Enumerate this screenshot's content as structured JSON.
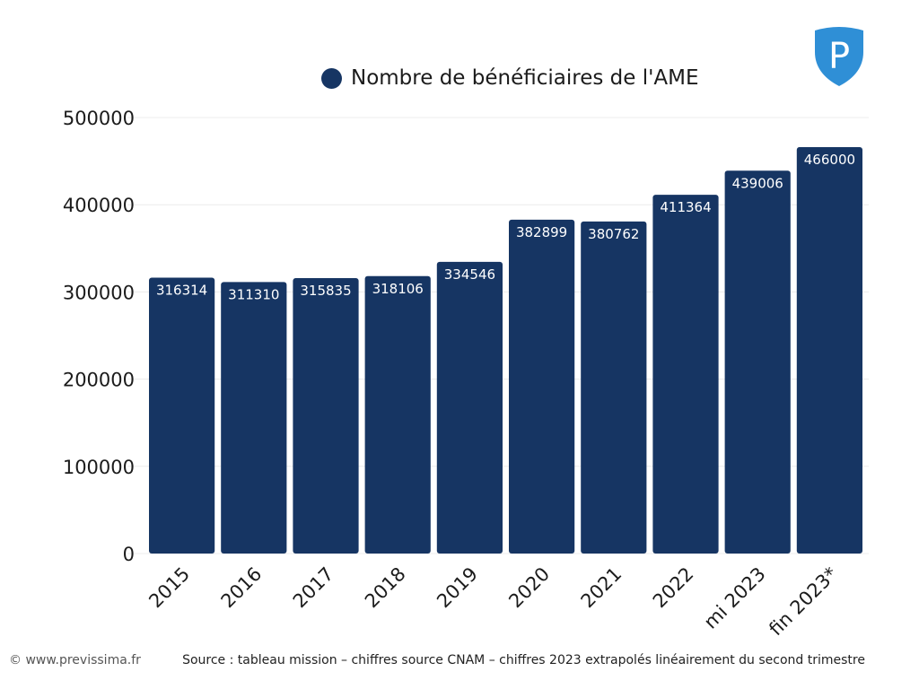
{
  "chart_data": {
    "type": "bar",
    "categories": [
      "2015",
      "2016",
      "2017",
      "2018",
      "2019",
      "2020",
      "2021",
      "2022",
      "mi 2023",
      "fin 2023*"
    ],
    "series": [
      {
        "name": "Nombre de bénéficiaires de l'AME",
        "values": [
          316314,
          311310,
          315835,
          318106,
          334546,
          382899,
          380762,
          411364,
          439006,
          466000
        ],
        "color": "#163563"
      }
    ],
    "ylim": [
      0,
      500000
    ],
    "yticks": [
      0,
      100000,
      200000,
      300000,
      400000,
      500000
    ],
    "grid": true,
    "legend_position": "top-center",
    "data_labels": true
  },
  "footer": {
    "copyright": "© www.previssima.fr",
    "source": "Source : tableau mission – chiffres source CNAM – chiffres 2023 extrapolés linéairement du second trimestre"
  },
  "logo": {
    "letter": "P",
    "color": "#2f8fd6"
  }
}
